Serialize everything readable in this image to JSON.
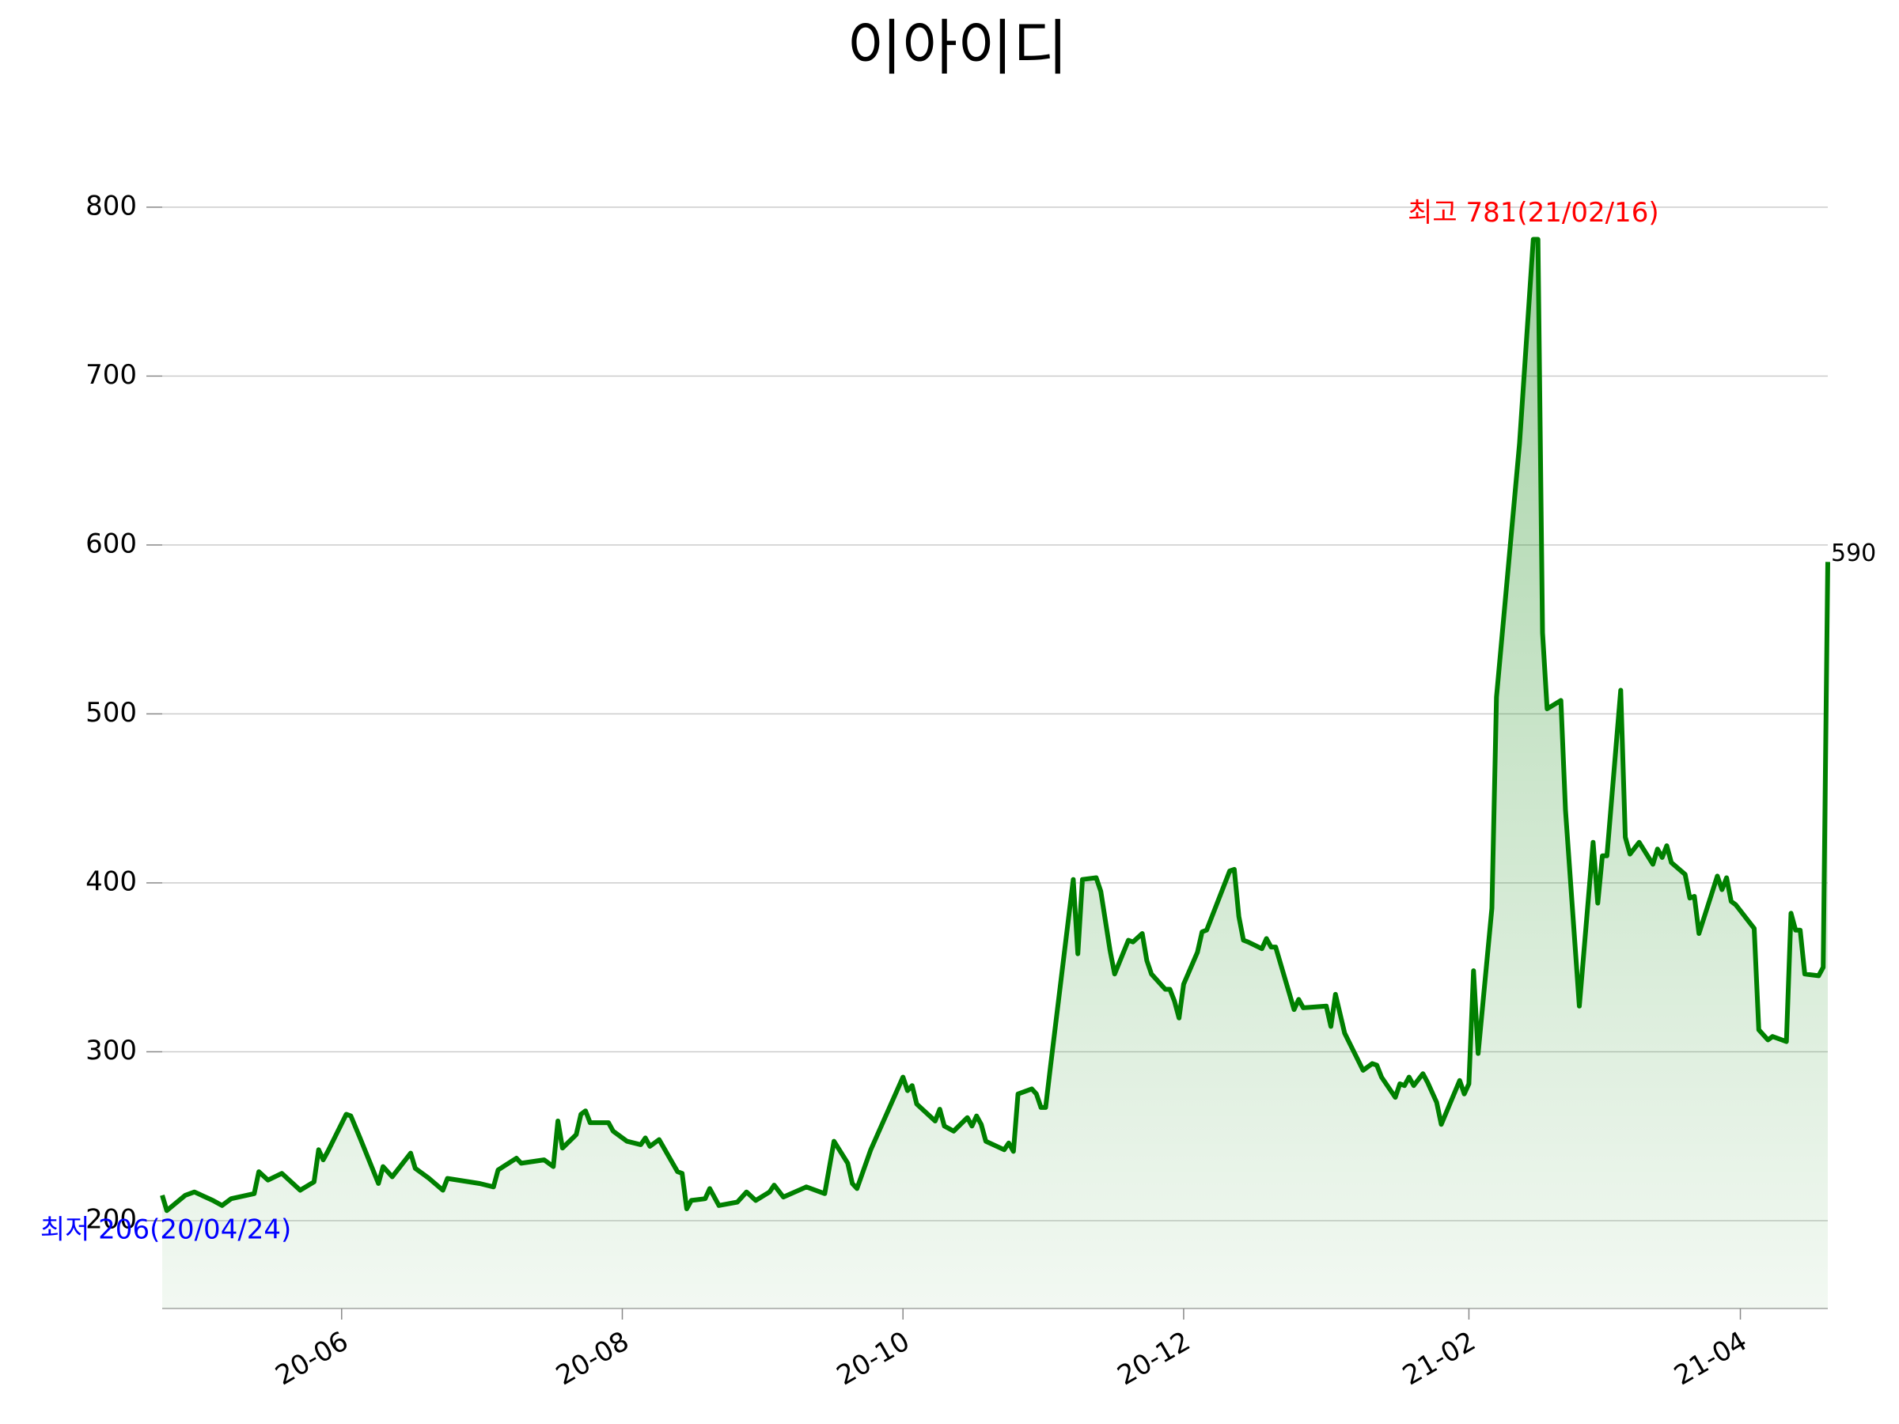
{
  "chart_data": {
    "type": "line",
    "title": "이아이디",
    "x": [
      "2020-04-23",
      "2020-04-24",
      "2020-04-28",
      "2020-04-30",
      "2020-05-04",
      "2020-05-06",
      "2020-05-08",
      "2020-05-13",
      "2020-05-14",
      "2020-05-16",
      "2020-05-19",
      "2020-05-23",
      "2020-05-26",
      "2020-05-27",
      "2020-05-28",
      "2020-05-29",
      "2020-06-02",
      "2020-06-03",
      "2020-06-05",
      "2020-06-09",
      "2020-06-10",
      "2020-06-12",
      "2020-06-16",
      "2020-06-17",
      "2020-06-20",
      "2020-06-23",
      "2020-06-24",
      "2020-07-01",
      "2020-07-04",
      "2020-07-05",
      "2020-07-09",
      "2020-07-10",
      "2020-07-15",
      "2020-07-17",
      "2020-07-18",
      "2020-07-19",
      "2020-07-22",
      "2020-07-23",
      "2020-07-24",
      "2020-07-25",
      "2020-07-29",
      "2020-07-30",
      "2020-08-02",
      "2020-08-05",
      "2020-08-06",
      "2020-08-07",
      "2020-08-09",
      "2020-08-13",
      "2020-08-14",
      "2020-08-15",
      "2020-08-16",
      "2020-08-19",
      "2020-08-20",
      "2020-08-22",
      "2020-08-26",
      "2020-08-28",
      "2020-08-30",
      "2020-09-02",
      "2020-09-03",
      "2020-09-05",
      "2020-09-10",
      "2020-09-14",
      "2020-09-16",
      "2020-09-19",
      "2020-09-20",
      "2020-09-21",
      "2020-09-24",
      "2020-10-01",
      "2020-10-02",
      "2020-10-03",
      "2020-10-04",
      "2020-10-08",
      "2020-10-09",
      "2020-10-10",
      "2020-10-12",
      "2020-10-15",
      "2020-10-16",
      "2020-10-17",
      "2020-10-18",
      "2020-10-19",
      "2020-10-23",
      "2020-10-24",
      "2020-10-25",
      "2020-10-26",
      "2020-10-29",
      "2020-10-30",
      "2020-10-31",
      "2020-11-01",
      "2020-11-02",
      "2020-11-07",
      "2020-11-08",
      "2020-11-09",
      "2020-11-12",
      "2020-11-13",
      "2020-11-15",
      "2020-11-16",
      "2020-11-19",
      "2020-11-20",
      "2020-11-22",
      "2020-11-23",
      "2020-11-24",
      "2020-11-27",
      "2020-11-28",
      "2020-11-29",
      "2020-11-30",
      "2020-12-01",
      "2020-12-04",
      "2020-12-05",
      "2020-12-06",
      "2020-12-11",
      "2020-12-12",
      "2020-12-13",
      "2020-12-14",
      "2020-12-15",
      "2020-12-18",
      "2020-12-19",
      "2020-12-20",
      "2020-12-21",
      "2020-12-25",
      "2020-12-26",
      "2020-12-27",
      "2021-01-01",
      "2021-01-02",
      "2021-01-03",
      "2021-01-05",
      "2021-01-09",
      "2021-01-11",
      "2021-01-12",
      "2021-01-13",
      "2021-01-16",
      "2021-01-17",
      "2021-01-18",
      "2021-01-19",
      "2021-01-20",
      "2021-01-22",
      "2021-01-23",
      "2021-01-25",
      "2021-01-26",
      "2021-01-30",
      "2021-01-31",
      "2021-02-01",
      "2021-02-02",
      "2021-02-03",
      "2021-02-06",
      "2021-02-07",
      "2021-02-12",
      "2021-02-15",
      "2021-02-16",
      "2021-02-17",
      "2021-02-18",
      "2021-02-21",
      "2021-02-22",
      "2021-02-25",
      "2021-02-28",
      "2021-03-01",
      "2021-03-02",
      "2021-03-03",
      "2021-03-06",
      "2021-03-07",
      "2021-03-08",
      "2021-03-10",
      "2021-03-13",
      "2021-03-14",
      "2021-03-15",
      "2021-03-16",
      "2021-03-17",
      "2021-03-20",
      "2021-03-21",
      "2021-03-22",
      "2021-03-23",
      "2021-03-27",
      "2021-03-28",
      "2021-03-29",
      "2021-03-30",
      "2021-03-31",
      "2021-04-04",
      "2021-04-05",
      "2021-04-07",
      "2021-04-08",
      "2021-04-11",
      "2021-04-12",
      "2021-04-13",
      "2021-04-14",
      "2021-04-15",
      "2021-04-18",
      "2021-04-19",
      "2021-04-20"
    ],
    "series": [
      {
        "color": "#008000",
        "values": [
          215,
          206,
          215,
          217,
          212,
          209,
          213,
          216,
          229,
          224,
          228,
          218,
          223,
          242,
          236,
          241,
          263,
          262,
          249,
          222,
          232,
          226,
          240,
          231,
          225,
          218,
          225,
          222,
          220,
          230,
          237,
          234,
          236,
          232,
          259,
          243,
          251,
          263,
          265,
          258,
          258,
          253,
          247,
          245,
          249,
          244,
          248,
          229,
          228,
          207,
          212,
          213,
          219,
          209,
          211,
          217,
          212,
          217,
          221,
          214,
          220,
          216,
          247,
          234,
          222,
          219,
          242,
          285,
          277,
          280,
          269,
          259,
          266,
          256,
          253,
          261,
          256,
          262,
          257,
          247,
          242,
          246,
          241,
          275,
          278,
          275,
          267,
          267,
          290,
          402,
          358,
          402,
          403,
          395,
          360,
          346,
          366,
          365,
          370,
          354,
          346,
          337,
          337,
          330,
          320,
          340,
          359,
          371,
          372,
          407,
          408,
          380,
          366,
          365,
          361,
          367,
          362,
          362,
          325,
          331,
          326,
          327,
          315,
          334,
          311,
          289,
          293,
          292,
          285,
          273,
          281,
          280,
          285,
          280,
          287,
          282,
          270,
          257,
          283,
          275,
          281,
          348,
          299,
          385,
          510,
          660,
          781,
          781,
          548,
          503,
          508,
          443,
          327,
          424,
          388,
          416,
          416,
          514,
          427,
          417,
          424,
          411,
          420,
          415,
          422,
          412,
          405,
          391,
          392,
          370,
          404,
          396,
          403,
          389,
          387,
          373,
          313,
          307,
          309,
          306,
          382,
          372,
          372,
          346,
          345,
          350,
          590
        ]
      }
    ],
    "xlim": [
      "2020-04-23",
      "2021-04-20"
    ],
    "xticks": [
      {
        "value": "2020-06-01",
        "label": "20-06"
      },
      {
        "value": "2020-08-01",
        "label": "20-08"
      },
      {
        "value": "2020-10-01",
        "label": "20-10"
      },
      {
        "value": "2020-12-01",
        "label": "20-12"
      },
      {
        "value": "2021-02-01",
        "label": "21-02"
      },
      {
        "value": "2021-04-01",
        "label": "21-04"
      }
    ],
    "ylim": [
      148,
      814
    ],
    "yticks": [
      200,
      300,
      400,
      500,
      600,
      700,
      800
    ],
    "grid": true,
    "max_annotation": "최고 781(21/02/16)",
    "min_annotation": "최저 206(20/04/24)",
    "max_color": "#ff0000",
    "min_color": "#0000ff"
  }
}
